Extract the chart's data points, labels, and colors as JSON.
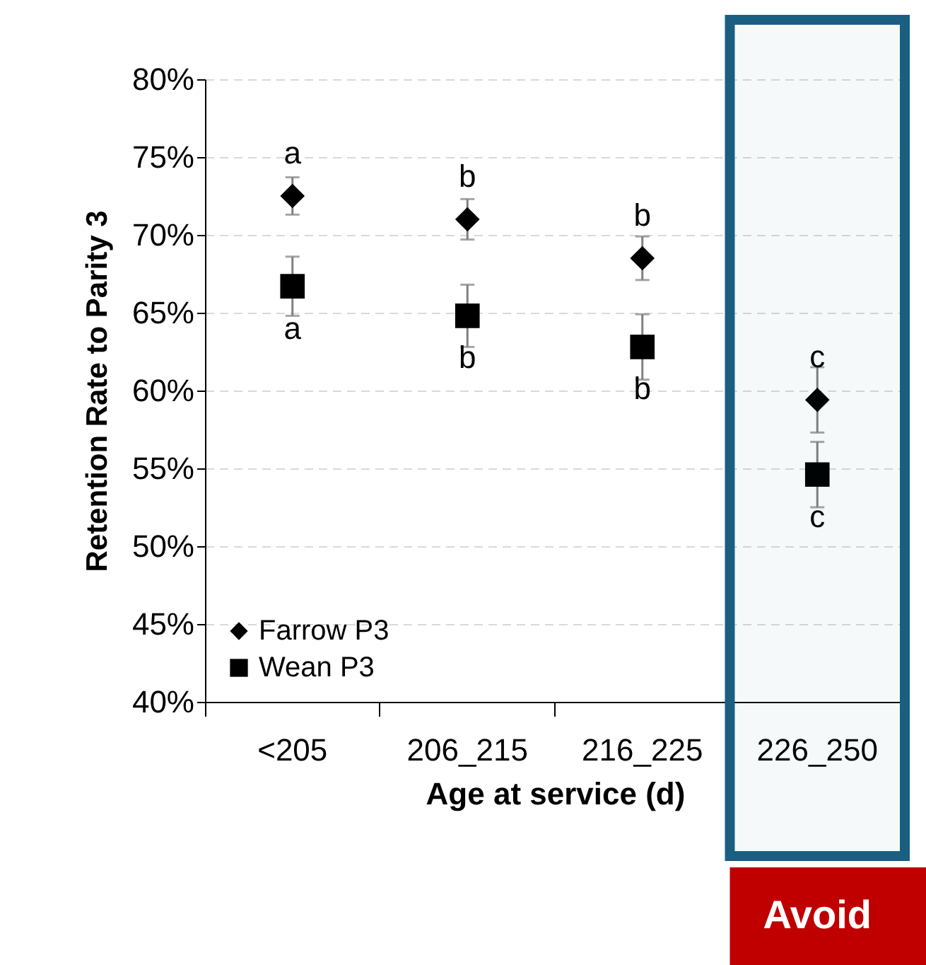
{
  "chart_data": {
    "type": "scatter",
    "xlabel": "Age at service (d)",
    "ylabel": "Retention Rate to Parity 3",
    "categories": [
      "<205",
      "206_215",
      "216_225",
      "226_250"
    ],
    "series": [
      {
        "name": "Farrow P3",
        "color": "#000000",
        "marker": "diamond",
        "values": [
          72.5,
          71.0,
          68.5,
          59.4
        ],
        "errors": [
          1.2,
          1.3,
          1.4,
          2.1
        ]
      },
      {
        "name": "Wean P3",
        "color": "#000000",
        "marker": "square",
        "values": [
          66.7,
          64.8,
          62.8,
          54.6
        ],
        "errors": [
          1.9,
          2.0,
          2.1,
          2.1
        ]
      }
    ],
    "ylim": [
      40,
      80
    ],
    "yticks": [
      {
        "value": 40,
        "label": "40%"
      },
      {
        "value": 45,
        "label": "45%"
      },
      {
        "value": 50,
        "label": "50%"
      },
      {
        "value": 55,
        "label": "55%"
      },
      {
        "value": 60,
        "label": "60%"
      },
      {
        "value": 65,
        "label": "65%"
      },
      {
        "value": 70,
        "label": "70%"
      },
      {
        "value": 75,
        "label": "75%"
      },
      {
        "value": 80,
        "label": "80%"
      }
    ],
    "grid": "y",
    "legend": "bottom left",
    "bands": [
      {
        "axis": "x",
        "from": "226_250",
        "to": "226_250",
        "label": "Avoid",
        "color": "#1a5f82"
      }
    ],
    "annotations": [
      {
        "text": "a",
        "x": "<205",
        "y": 72.5
      },
      {
        "text": "a",
        "x": "<205",
        "y": 66.7
      },
      {
        "text": "b",
        "x": "206_215",
        "y": 71.0
      },
      {
        "text": "b",
        "x": "206_215",
        "y": 64.8
      },
      {
        "text": "b",
        "x": "216_225",
        "y": 68.5
      },
      {
        "text": "b",
        "x": "216_225",
        "y": 62.8
      },
      {
        "text": "c",
        "x": "226_250",
        "y": 59.4
      },
      {
        "text": "c",
        "x": "226_250",
        "y": 54.6
      }
    ]
  }
}
